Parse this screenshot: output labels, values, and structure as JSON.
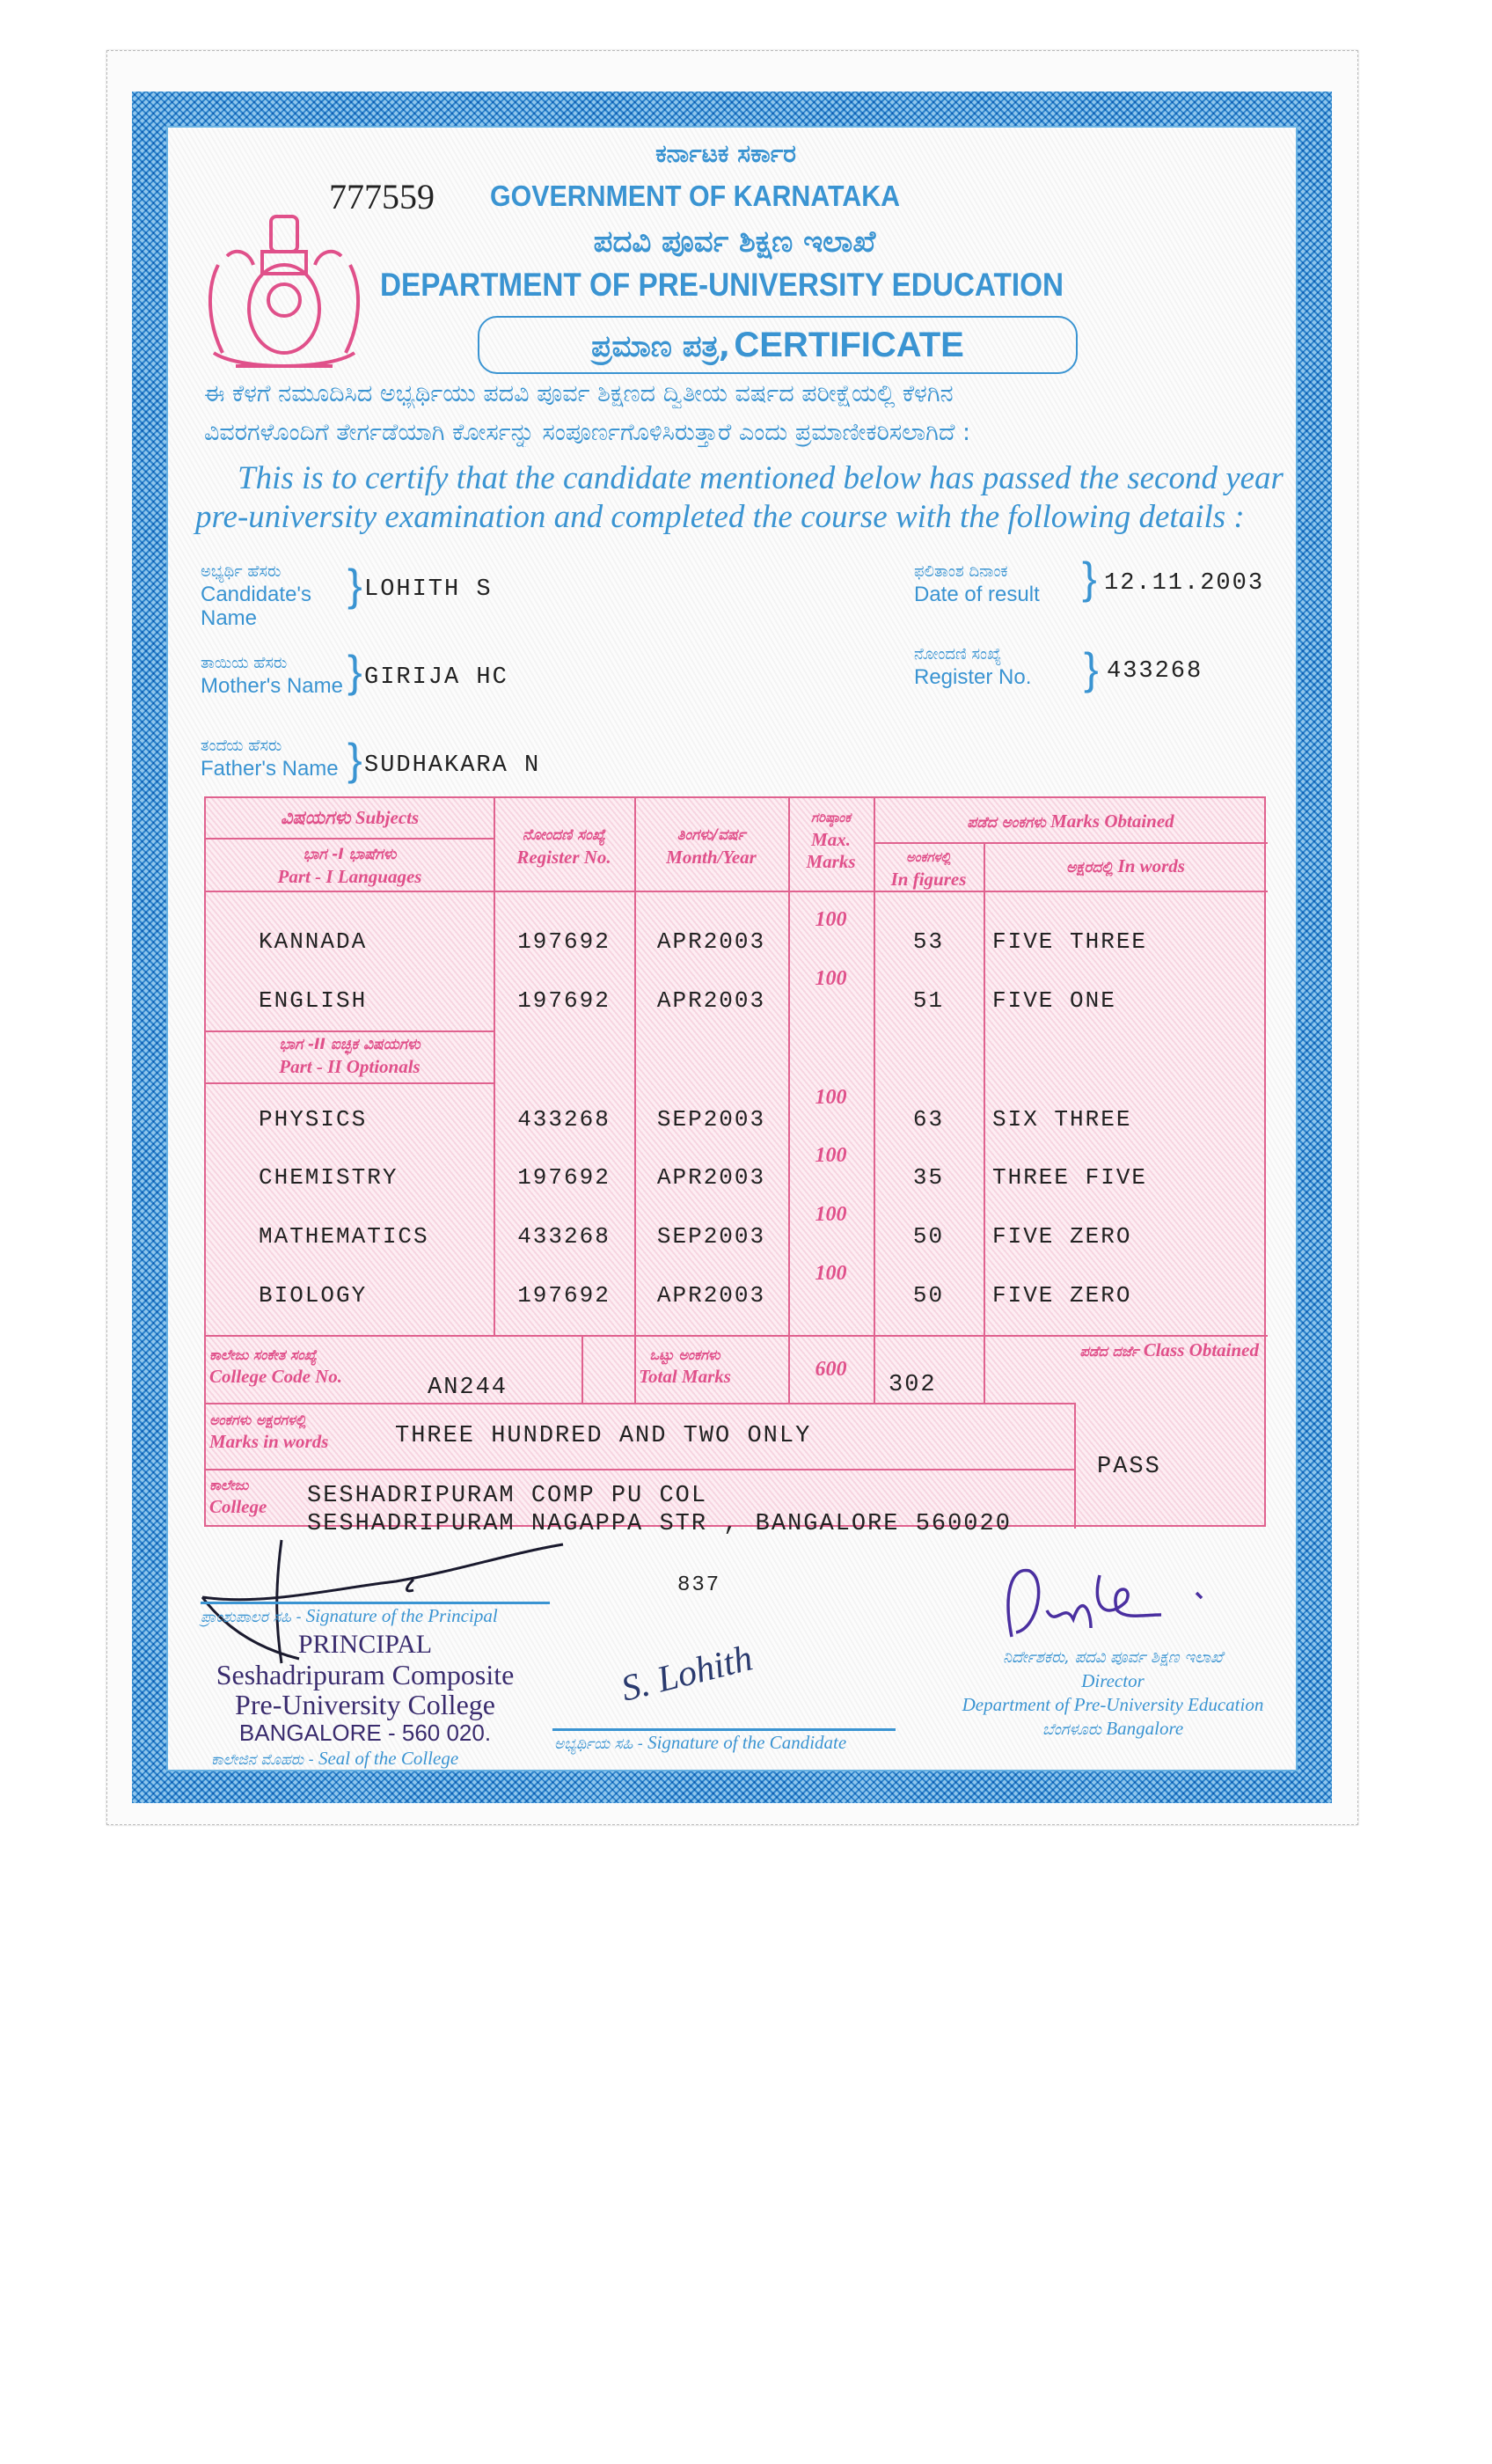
{
  "serial_no": "777559",
  "header": {
    "gov_kn": "ಕರ್ನಾಟಕ ಸರ್ಕಾರ",
    "gov_en": "GOVERNMENT OF KARNATAKA",
    "dept_kn": "ಪದವಿ ಪೂರ್ವ ಶಿಕ್ಷಣ ಇಲಾಖೆ",
    "dept_en": "DEPARTMENT OF PRE-UNIVERSITY EDUCATION",
    "cert_kn": "ಪ್ರಮಾಣ ಪತ್ರ,",
    "cert_en": "CERTIFICATE"
  },
  "statement": {
    "kn_line1": "ಈ ಕೆಳಗೆ  ನಮೂದಿಸಿದ ಅಭ್ಯರ್ಥಿಯು ಪದವಿ ಪೂರ್ವ ಶಿಕ್ಷಣದ ದ್ವಿತೀಯ ವರ್ಷದ ಪರೀಕ್ಷೆಯಲ್ಲಿ ಕೆಳಗಿನ",
    "kn_line2": "ವಿವರಗಳೊಂದಿಗೆ ತೇರ್ಗಡೆಯಾಗಿ ಕೋರ್ಸನ್ನು  ಸಂಪೂರ್ಣಗೊಳಿಸಿರುತ್ತಾರೆ ಎಂದು ಪ್ರಮಾಣೀಕರಿಸಲಾಗಿದೆ :",
    "en_line1": "This is to certify that the candidate mentioned below has passed the second year",
    "en_line2": "pre-university examination and completed the course with the following details :"
  },
  "fields": {
    "candidate_name": {
      "label_kn": "ಅಭ್ಯರ್ಥಿ ಹೆಸರು",
      "label_en": "Candidate's Name",
      "value": "LOHITH S"
    },
    "mother_name": {
      "label_kn": "ತಾಯಿಯ ಹೆಸರು",
      "label_en": "Mother's Name",
      "value": "GIRIJA HC"
    },
    "father_name": {
      "label_kn": "ತಂದೆಯ ಹೆಸರು",
      "label_en": "Father's Name",
      "value": "SUDHAKARA N"
    },
    "date_of_result": {
      "label_kn": "ಫಲಿತಾಂಶ ದಿನಾಂಕ",
      "label_en": "Date of result",
      "value": "12.11.2003"
    },
    "register_no": {
      "label_kn": "ನೋಂದಣಿ ಸಂಖ್ಯೆ",
      "label_en": "Register No.",
      "value": "433268"
    }
  },
  "table": {
    "headers": {
      "subjects_kn": "ವಿಷಯಗಳು",
      "subjects_en": "Subjects",
      "part1_kn": "ಭಾಗ -I ಭಾಷೆಗಳು",
      "part1_en": "Part - I Languages",
      "regno_kn": "ನೋಂದಣಿ ಸಂಖ್ಯೆ",
      "regno_en": "Register No.",
      "month_kn": "ತಿಂಗಳು/ವರ್ಷ",
      "month_en": "Month/Year",
      "max_kn": "ಗರಿಷ್ಠಾಂಕ",
      "max_en": "Max. Marks",
      "obtained_kn": "ಪಡೆದ ಅಂಕಗಳು",
      "obtained_en": "Marks Obtained",
      "figures_kn": "ಅಂಕಗಳಲ್ಲಿ",
      "figures_en": "In figures",
      "words_kn": "ಅಕ್ಷರದಲ್ಲಿ",
      "words_en": "In words",
      "part2_kn": "ಭಾಗ -II ಐಚ್ಛಿಕ ವಿಷಯಗಳು",
      "part2_en": "Part - II Optionals"
    },
    "subjects": [
      {
        "subject": "KANNADA",
        "register_no": "197692",
        "month_year": "APR2003",
        "max": "100",
        "figures": "53",
        "words": "FIVE THREE"
      },
      {
        "subject": "ENGLISH",
        "register_no": "197692",
        "month_year": "APR2003",
        "max": "100",
        "figures": "51",
        "words": "FIVE ONE"
      },
      {
        "subject": "PHYSICS",
        "register_no": "433268",
        "month_year": "SEP2003",
        "max": "100",
        "figures": "63",
        "words": "SIX THREE"
      },
      {
        "subject": "CHEMISTRY",
        "register_no": "197692",
        "month_year": "APR2003",
        "max": "100",
        "figures": "35",
        "words": "THREE FIVE"
      },
      {
        "subject": "MATHEMATICS",
        "register_no": "433268",
        "month_year": "SEP2003",
        "max": "100",
        "figures": "50",
        "words": "FIVE ZERO"
      },
      {
        "subject": "BIOLOGY",
        "register_no": "197692",
        "month_year": "APR2003",
        "max": "100",
        "figures": "50",
        "words": "FIVE ZERO"
      }
    ],
    "footer": {
      "college_code_kn": "ಕಾಲೇಜು ಸಂಕೇತ ಸಂಖ್ಯೆ",
      "college_code_en": "College Code No.",
      "college_code": "AN244",
      "total_kn": "ಒಟ್ಟು ಅಂಕಗಳು",
      "total_en": "Total Marks",
      "total_max": "600",
      "total_obtained": "302",
      "class_kn": "ಪಡೆದ ದರ್ಜೆ",
      "class_en": "Class Obtained",
      "class_value": "PASS",
      "words_kn": "ಅಂಕಗಳು ಅಕ್ಷರಗಳಲ್ಲಿ",
      "words_en": "Marks in words",
      "words_value": "THREE HUNDRED AND TWO ONLY",
      "college_kn": "ಕಾಲೇಜು",
      "college_en": "College",
      "college_line1": "SESHADRIPURAM COMP PU COL",
      "college_line2": "SESHADRIPURAM NAGAPPA STR , BANGALORE 560020"
    }
  },
  "signatures": {
    "code": "837",
    "principal_label_kn": "ಪ್ರಾಂಶುಪಾಲರ ಸಹಿ -",
    "principal_label_en": "Signature of the Principal",
    "seal_label_kn": "ಕಾಲೇಜಿನ ಮೊಹರು -",
    "seal_label_en": "Seal of the College",
    "stamp": [
      "PRINCIPAL",
      "Seshadripuram Composite",
      "Pre-University College",
      "BANGALORE - 560 020."
    ],
    "candidate_label_kn": "ಅಭ್ಯರ್ಥಿಯ ಸಹಿ -",
    "candidate_label_en": "Signature of the Candidate",
    "candidate_signature": "S. Lohith",
    "director_kn": "ನಿರ್ದೇಶಕರು, ಪದವಿ ಪೂರ್ವ ಶಿಕ್ಷಣ ಇಲಾಖೆ",
    "director_en": "Director",
    "director_dept": "Department of Pre-University Education",
    "director_city_kn": "ಬೆಂಗಳೂರು",
    "director_city_en": "Bangalore"
  },
  "colors": {
    "frame_blue": "#3d97d4",
    "text_blue": "#3a94d2",
    "table_pink": "#e0508a",
    "stamp_ink": "#3a2c6e"
  }
}
